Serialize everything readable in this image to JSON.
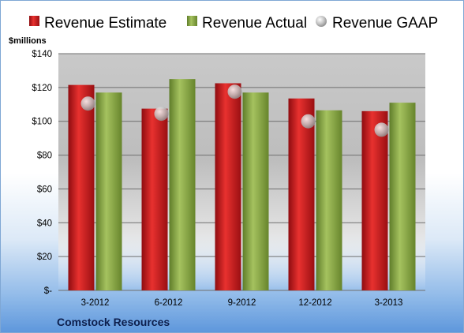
{
  "chart_data": {
    "type": "bar",
    "title": "",
    "unit_label": "$millions",
    "footer_label": "Comstock Resources",
    "categories": [
      "3-2012",
      "6-2012",
      "9-2012",
      "12-2012",
      "3-2013"
    ],
    "series": [
      {
        "name": "Revenue Estimate",
        "kind": "bar",
        "color": "#c8151b",
        "values": [
          121.5,
          107.5,
          122.5,
          113.5,
          106
        ]
      },
      {
        "name": "Revenue Actual",
        "kind": "bar",
        "color": "#7c9b3a",
        "values": [
          117,
          125,
          117,
          106.5,
          111
        ]
      },
      {
        "name": "Revenue GAAP",
        "kind": "marker",
        "color": "#b0b0b0",
        "values": [
          110.5,
          104.5,
          117.5,
          100,
          95
        ]
      }
    ],
    "ylim": [
      0,
      140
    ],
    "yticks": [
      0,
      20,
      40,
      60,
      80,
      100,
      120,
      140
    ],
    "ytick_labels": [
      "$-",
      "$20",
      "$40",
      "$60",
      "$80",
      "$100",
      "$120",
      "$140"
    ],
    "grid": true,
    "legend_position": "top"
  }
}
